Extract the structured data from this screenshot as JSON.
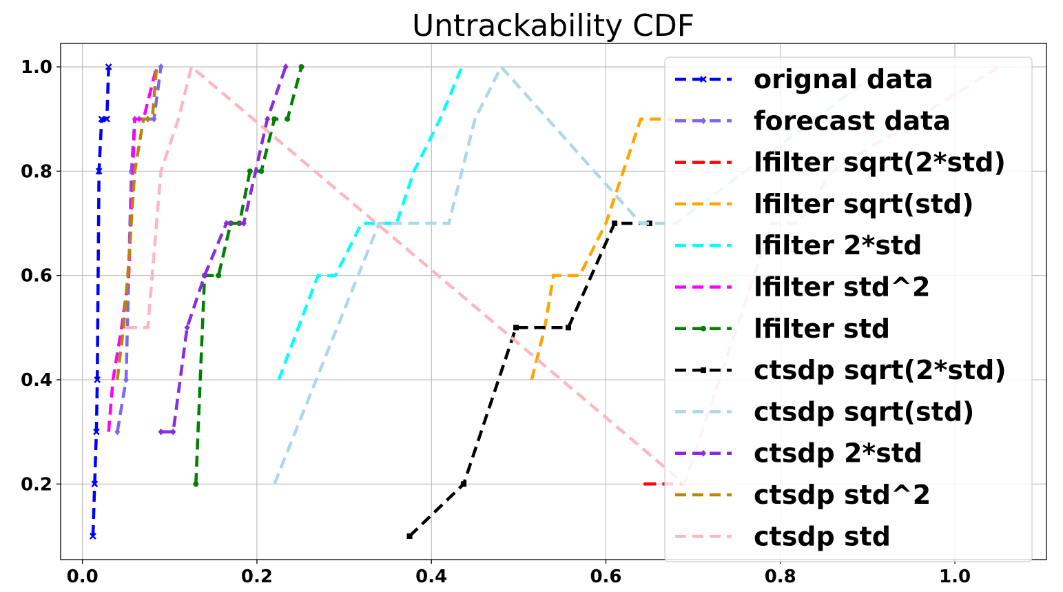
{
  "chart_data": {
    "type": "line",
    "title": "Untrackability CDF",
    "xlabel": "",
    "ylabel": "",
    "xlim": [
      -0.025,
      1.105
    ],
    "ylim": [
      0.055,
      1.045
    ],
    "x_ticks": [
      0.0,
      0.2,
      0.4,
      0.6,
      0.8,
      1.0
    ],
    "x_tick_labels": [
      "0.0",
      "0.2",
      "0.4",
      "0.6",
      "0.8",
      "1.0"
    ],
    "y_ticks": [
      0.2,
      0.4,
      0.6,
      0.8,
      1.0
    ],
    "y_tick_labels": [
      "0.2",
      "0.4",
      "0.6",
      "0.8",
      "1.0"
    ],
    "grid": true,
    "legend_position": "upper-right",
    "series": [
      {
        "name": "orignal data",
        "color": "#0000ff",
        "marker": "x",
        "x": [
          0.012,
          0.014,
          0.016,
          0.017,
          0.019,
          0.022,
          0.028,
          0.03
        ],
        "y": [
          0.1,
          0.2,
          0.3,
          0.4,
          0.8,
          0.9,
          0.9,
          1.0
        ]
      },
      {
        "name": "forecast data",
        "color": "#7b68ee",
        "marker": "d",
        "x": [
          0.04,
          0.05,
          0.056,
          0.06,
          0.065,
          0.075,
          0.082,
          0.09
        ],
        "y": [
          0.3,
          0.4,
          0.8,
          0.9,
          0.9,
          0.9,
          0.9,
          1.0
        ]
      },
      {
        "name": "lfilter sqrt(2*std)",
        "color": "#ff0000",
        "marker": ".",
        "x": [
          0.645,
          0.69
        ],
        "y": [
          0.2,
          0.2
        ]
      },
      {
        "name": "lfilter sqrt(std)",
        "color": "#ffa500",
        "marker": "",
        "x": [
          0.515,
          0.53,
          0.54,
          0.55,
          0.57,
          0.6,
          0.62,
          0.64,
          0.7
        ],
        "y": [
          0.4,
          0.5,
          0.6,
          0.6,
          0.6,
          0.7,
          0.8,
          0.9,
          0.9
        ]
      },
      {
        "name": "lfilter 2*std",
        "color": "#00ffff",
        "marker": "",
        "x": [
          0.225,
          0.27,
          0.29,
          0.32,
          0.36,
          0.38,
          0.41,
          0.435
        ],
        "y": [
          0.4,
          0.6,
          0.6,
          0.7,
          0.7,
          0.8,
          0.9,
          1.0
        ]
      },
      {
        "name": "lfilter std^2",
        "color": "#ff00ff",
        "marker": "",
        "x": [
          0.03,
          0.035,
          0.045,
          0.053,
          0.06,
          0.07,
          0.085
        ],
        "y": [
          0.3,
          0.4,
          0.5,
          0.6,
          0.9,
          0.9,
          1.0
        ]
      },
      {
        "name": "lfilter std",
        "color": "#008000",
        "marker": "o",
        "x": [
          0.13,
          0.14,
          0.156,
          0.17,
          0.18,
          0.192,
          0.205,
          0.22,
          0.235,
          0.251
        ],
        "y": [
          0.2,
          0.6,
          0.6,
          0.7,
          0.7,
          0.8,
          0.8,
          0.9,
          0.9,
          1.0
        ]
      },
      {
        "name": "ctsdp sqrt(2*std)",
        "color": "#000000",
        "marker": "s",
        "x": [
          0.375,
          0.437,
          0.497,
          0.557,
          0.61,
          0.65
        ],
        "y": [
          0.1,
          0.2,
          0.5,
          0.5,
          0.7,
          0.7
        ]
      },
      {
        "name": "ctsdp sqrt(std)",
        "color": "#add8e6",
        "marker": "",
        "x": [
          0.22,
          0.34,
          0.38,
          0.42,
          0.45,
          0.48,
          0.64,
          0.68,
          0.92
        ],
        "y": [
          0.2,
          0.7,
          0.7,
          0.7,
          0.9,
          1.0,
          0.7,
          0.7,
          1.0
        ]
      },
      {
        "name": "ctsdp 2*std",
        "color": "#8a2be2",
        "marker": "d",
        "x": [
          0.09,
          0.104,
          0.12,
          0.14,
          0.165,
          0.185,
          0.212,
          0.233
        ],
        "y": [
          0.3,
          0.3,
          0.5,
          0.6,
          0.7,
          0.7,
          0.9,
          1.0
        ]
      },
      {
        "name": "ctsdp std^2",
        "color": "#b8860b",
        "marker": "",
        "x": [
          0.04,
          0.047,
          0.052,
          0.06,
          0.07,
          0.08,
          0.085
        ],
        "y": [
          0.4,
          0.5,
          0.6,
          0.8,
          0.9,
          0.9,
          1.0
        ]
      },
      {
        "name": "ctsdp std",
        "color": "#ffb6c1",
        "marker": "",
        "x": [
          0.05,
          0.075,
          0.09,
          0.11,
          0.125,
          0.69,
          0.79,
          0.8,
          0.82,
          0.86,
          1.05
        ],
        "y": [
          0.5,
          0.5,
          0.8,
          0.9,
          1.0,
          0.2,
          0.7,
          0.7,
          0.7,
          0.8,
          1.0
        ]
      }
    ]
  }
}
